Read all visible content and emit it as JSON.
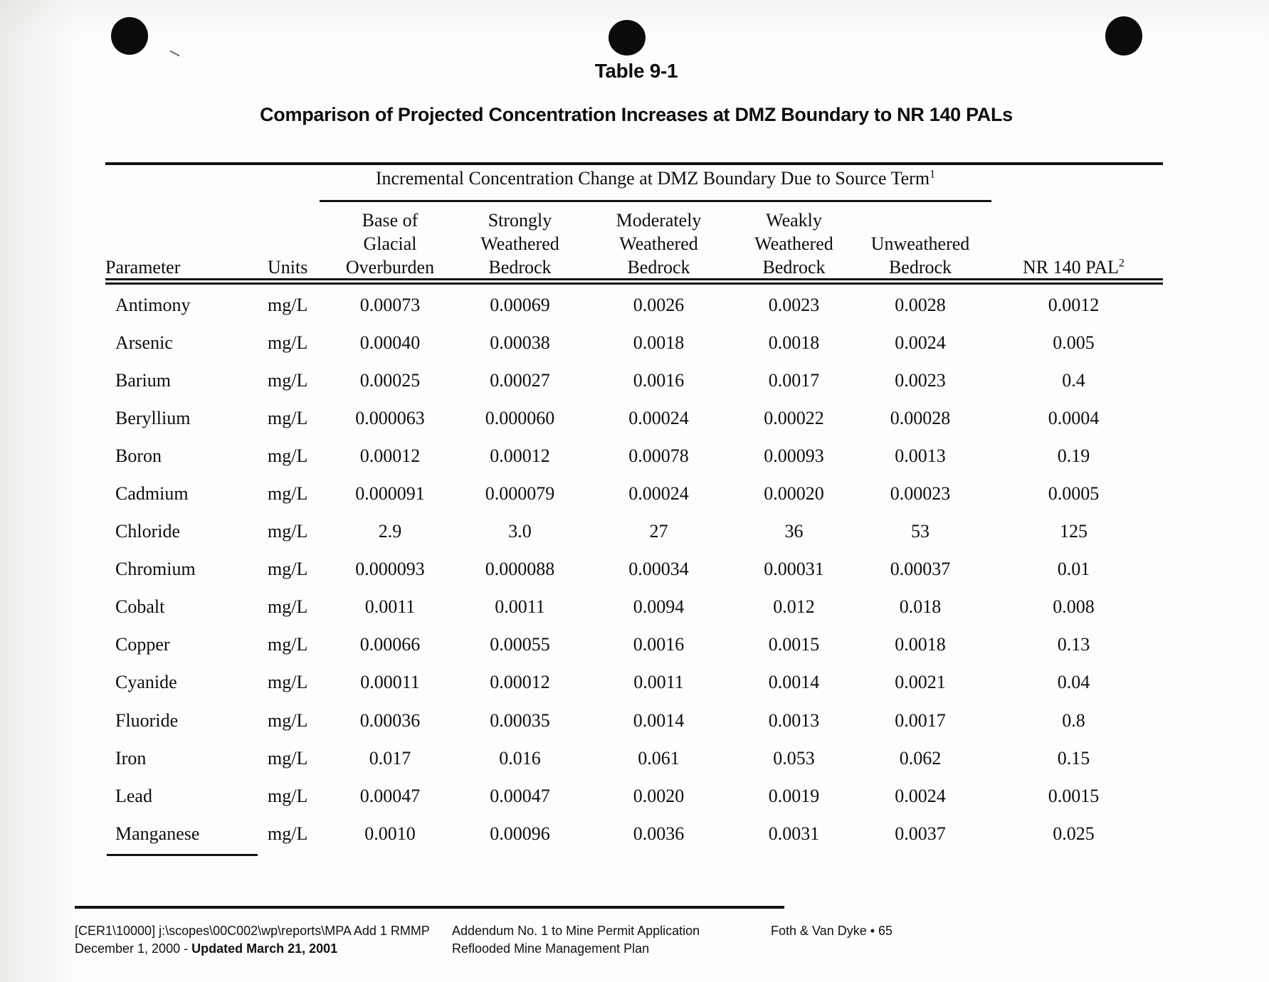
{
  "page": {
    "table_label": "Table 9-1",
    "title": "Comparison of Projected Concentration Increases at DMZ Boundary to NR 140 PALs"
  },
  "table": {
    "span_header": {
      "text": "Incremental Concentration Change at DMZ Boundary Due to Source Term",
      "superscript": "1"
    },
    "columns": [
      {
        "lines": [
          "Parameter"
        ]
      },
      {
        "lines": [
          "Units"
        ]
      },
      {
        "lines": [
          "Base of",
          "Glacial",
          "Overburden"
        ]
      },
      {
        "lines": [
          "Strongly",
          "Weathered",
          "Bedrock"
        ]
      },
      {
        "lines": [
          "Moderately",
          "Weathered",
          "Bedrock"
        ]
      },
      {
        "lines": [
          "Weakly",
          "Weathered",
          "Bedrock"
        ]
      },
      {
        "lines": [
          "Unweathered",
          "Bedrock"
        ]
      },
      {
        "lines": [
          "NR 140 PAL"
        ],
        "superscript": "2"
      }
    ],
    "rows": [
      {
        "parameter": "Antimony",
        "units": "mg/L",
        "values": [
          "0.00073",
          "0.00069",
          "0.0026",
          "0.0023",
          "0.0028",
          "0.0012"
        ]
      },
      {
        "parameter": "Arsenic",
        "units": "mg/L",
        "values": [
          "0.00040",
          "0.00038",
          "0.0018",
          "0.0018",
          "0.0024",
          "0.005"
        ]
      },
      {
        "parameter": "Barium",
        "units": "mg/L",
        "values": [
          "0.00025",
          "0.00027",
          "0.0016",
          "0.0017",
          "0.0023",
          "0.4"
        ]
      },
      {
        "parameter": "Beryllium",
        "units": "mg/L",
        "values": [
          "0.000063",
          "0.000060",
          "0.00024",
          "0.00022",
          "0.00028",
          "0.0004"
        ]
      },
      {
        "parameter": "Boron",
        "units": "mg/L",
        "values": [
          "0.00012",
          "0.00012",
          "0.00078",
          "0.00093",
          "0.0013",
          "0.19"
        ]
      },
      {
        "parameter": "Cadmium",
        "units": "mg/L",
        "values": [
          "0.000091",
          "0.000079",
          "0.00024",
          "0.00020",
          "0.00023",
          "0.0005"
        ]
      },
      {
        "parameter": "Chloride",
        "units": "mg/L",
        "values": [
          "2.9",
          "3.0",
          "27",
          "36",
          "53",
          "125"
        ]
      },
      {
        "parameter": "Chromium",
        "units": "mg/L",
        "values": [
          "0.000093",
          "0.000088",
          "0.00034",
          "0.00031",
          "0.00037",
          "0.01"
        ]
      },
      {
        "parameter": "Cobalt",
        "units": "mg/L",
        "values": [
          "0.0011",
          "0.0011",
          "0.0094",
          "0.012",
          "0.018",
          "0.008"
        ]
      },
      {
        "parameter": "Copper",
        "units": "mg/L",
        "values": [
          "0.00066",
          "0.00055",
          "0.0016",
          "0.0015",
          "0.0018",
          "0.13"
        ]
      },
      {
        "parameter": "Cyanide",
        "units": "mg/L",
        "values": [
          "0.00011",
          "0.00012",
          "0.0011",
          "0.0014",
          "0.0021",
          "0.04"
        ]
      },
      {
        "parameter": "Fluoride",
        "units": "mg/L",
        "values": [
          "0.00036",
          "0.00035",
          "0.0014",
          "0.0013",
          "0.0017",
          "0.8"
        ]
      },
      {
        "parameter": "Iron",
        "units": "mg/L",
        "values": [
          "0.017",
          "0.016",
          "0.061",
          "0.053",
          "0.062",
          "0.15"
        ]
      },
      {
        "parameter": "Lead",
        "units": "mg/L",
        "values": [
          "0.00047",
          "0.00047",
          "0.0020",
          "0.0019",
          "0.0024",
          "0.0015"
        ]
      },
      {
        "parameter": "Manganese",
        "units": "mg/L",
        "values": [
          "0.0010",
          "0.00096",
          "0.0036",
          "0.0031",
          "0.0037",
          "0.025"
        ]
      }
    ]
  },
  "footer": {
    "left_line1": "[CER1\\10000] j:\\scopes\\00C002\\wp\\reports\\MPA Add 1 RMMP",
    "left_line2_prefix": "December 1, 2000 - ",
    "left_line2_bold": "Updated March 21, 2001",
    "center_line1": "Addendum No. 1 to Mine Permit Application",
    "center_line2": "Reflooded Mine Management Plan",
    "right": "Foth & Van Dyke • 65"
  },
  "colors": {
    "ink": "#0e0e0e",
    "paper": "#fdfdfc"
  }
}
